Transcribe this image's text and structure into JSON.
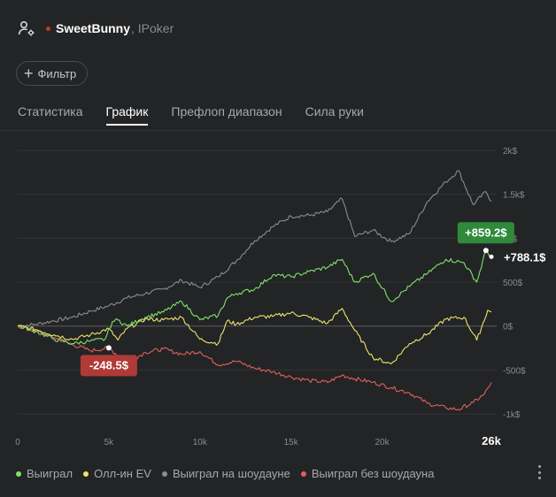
{
  "header": {
    "player_name": "SweetBunny",
    "site": ", IPoker"
  },
  "filter": {
    "label": "Фильтр"
  },
  "tabs": [
    {
      "label": "Статистика",
      "active": false
    },
    {
      "label": "График",
      "active": true
    },
    {
      "label": "Префлоп диапазон",
      "active": false
    },
    {
      "label": "Сила руки",
      "active": false
    }
  ],
  "colors": {
    "won": "#7de36b",
    "allin_ev": "#f0e36a",
    "showdown": "#8c8c8c",
    "non_showdown": "#e0605a"
  },
  "chart_data": {
    "type": "line",
    "x_ticks": [
      "0",
      "5k",
      "10k",
      "15k",
      "20k"
    ],
    "x_end_label": "26k",
    "xlim": [
      0,
      26000
    ],
    "y_ticks": [
      "2k$",
      "1.5k$",
      "1k$",
      "500$",
      "0$",
      "-500$",
      "-1k$"
    ],
    "y_tick_values": [
      2000,
      1500,
      1000,
      500,
      0,
      -500,
      -1000
    ],
    "ylim": [
      -1100,
      2100
    ],
    "grid": true,
    "series": [
      {
        "name": "Выиграл",
        "color_key": "won",
        "x": [
          0,
          1000,
          2000,
          3000,
          4000,
          4800,
          5200,
          5500,
          6000,
          7000,
          8000,
          9000,
          10000,
          11000,
          11500,
          12000,
          13000,
          14000,
          15000,
          16000,
          17000,
          17800,
          18500,
          19500,
          20500,
          21500,
          22500,
          23500,
          24500,
          25200,
          25700,
          26000
        ],
        "y": [
          0,
          -60,
          -150,
          -200,
          -170,
          -150,
          50,
          70,
          0,
          100,
          160,
          280,
          70,
          120,
          320,
          370,
          420,
          580,
          560,
          620,
          670,
          760,
          500,
          600,
          280,
          450,
          600,
          760,
          720,
          500,
          859.2,
          788.1
        ]
      },
      {
        "name": "Олл-ин EV",
        "color_key": "allin_ev",
        "x": [
          0,
          1000,
          2000,
          3000,
          4000,
          5000,
          5500,
          6000,
          7000,
          8000,
          9000,
          10000,
          11000,
          11500,
          12000,
          13000,
          14000,
          15000,
          16000,
          17000,
          17800,
          18500,
          19500,
          20500,
          21500,
          22500,
          23500,
          24500,
          25200,
          25800,
          26000
        ],
        "y": [
          0,
          -40,
          -100,
          -150,
          -100,
          -30,
          -160,
          -30,
          80,
          70,
          100,
          -150,
          -200,
          60,
          20,
          100,
          110,
          150,
          100,
          30,
          200,
          -50,
          -360,
          -430,
          -200,
          -90,
          80,
          100,
          -160,
          180,
          160
        ]
      },
      {
        "name": "Выиграл на шоудауне",
        "color_key": "showdown",
        "x": [
          0,
          1000,
          2000,
          3000,
          4000,
          5000,
          6000,
          7000,
          8000,
          9000,
          10000,
          11000,
          12000,
          13000,
          14000,
          15000,
          16000,
          17000,
          17800,
          18500,
          19500,
          20500,
          21500,
          22500,
          23500,
          24200,
          25000,
          25700,
          26000
        ],
        "y": [
          0,
          20,
          60,
          100,
          170,
          230,
          320,
          370,
          420,
          520,
          440,
          560,
          740,
          970,
          1130,
          1250,
          1260,
          1300,
          1450,
          1020,
          1090,
          960,
          1050,
          1420,
          1640,
          1770,
          1380,
          1530,
          1420
        ]
      },
      {
        "name": "Выиграл без шоудауна",
        "color_key": "non_showdown",
        "x": [
          0,
          1000,
          2000,
          3000,
          4000,
          5000,
          6000,
          7000,
          8000,
          9000,
          10000,
          11000,
          12000,
          13000,
          14000,
          15000,
          16000,
          17000,
          17800,
          18500,
          19500,
          20500,
          21500,
          22500,
          23500,
          24200,
          25000,
          25600,
          26000
        ],
        "y": [
          0,
          -60,
          -130,
          -210,
          -280,
          -248.5,
          -420,
          -300,
          -260,
          -320,
          -290,
          -440,
          -400,
          -480,
          -520,
          -580,
          -620,
          -640,
          -560,
          -600,
          -640,
          -700,
          -760,
          -880,
          -930,
          -950,
          -870,
          -780,
          -640
        ]
      }
    ],
    "annotations": [
      {
        "label": "+859.2$",
        "series": "Выиграл",
        "x": 25700,
        "y": 859.2,
        "color_key": "won"
      },
      {
        "label": "+788.1$",
        "series": "Выиграл",
        "x": 26000,
        "y": 788.1,
        "plain": true
      },
      {
        "label": "-248.5$",
        "series": "Выиграл без шоудауна",
        "x": 5000,
        "y": -248.5,
        "color_key": "non_showdown"
      }
    ]
  },
  "more_menu_icon": "vertical-dots-icon"
}
